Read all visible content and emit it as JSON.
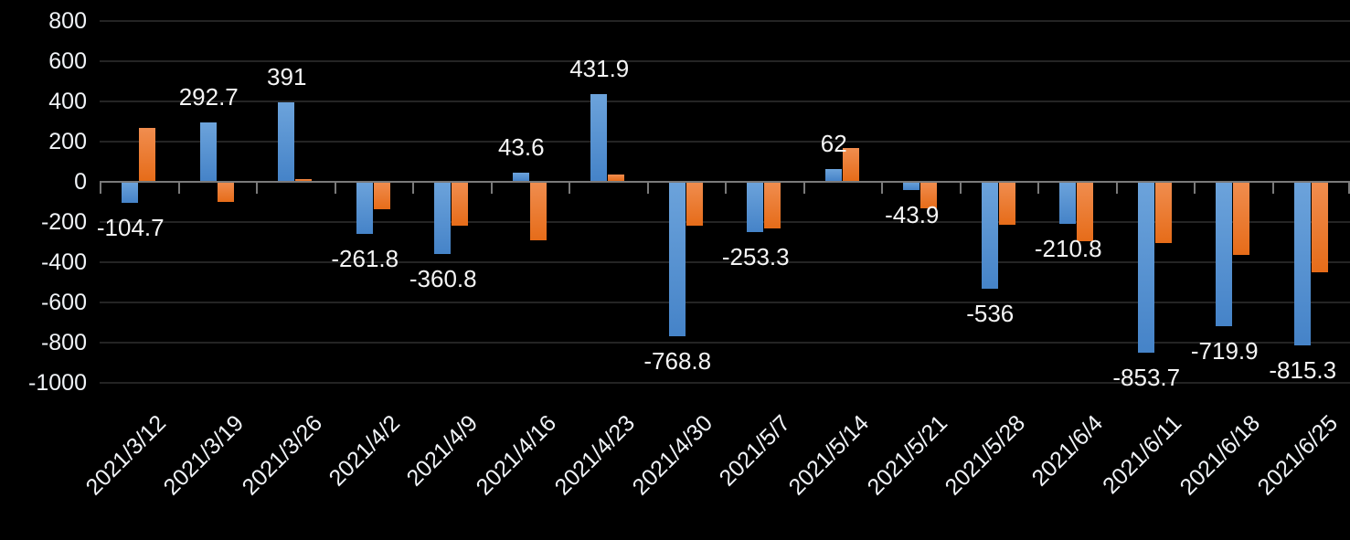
{
  "chart_data": {
    "type": "bar",
    "title": "",
    "legend": "none",
    "grid": "horizontal",
    "background_color": "#000000",
    "text_color": "#f0f3f7",
    "gridline_color": "#242424",
    "axis_line_color": "#7a7a7a",
    "categories": [
      "2021/3/12",
      "2021/3/19",
      "2021/3/26",
      "2021/4/2",
      "2021/4/9",
      "2021/4/16",
      "2021/4/23",
      "2021/4/30",
      "2021/5/7",
      "2021/5/14",
      "2021/5/21",
      "2021/5/28",
      "2021/6/4",
      "2021/6/11",
      "2021/6/18",
      "2021/6/25"
    ],
    "series": [
      {
        "name": "blue-series",
        "color": "#5B9BD5",
        "color_top": "#6CA3DB",
        "color_bottom": "#4583C8",
        "values": [
          -104.7,
          292.7,
          391,
          -261.8,
          -360.8,
          43.6,
          431.9,
          -768.8,
          -253.3,
          62,
          -43.9,
          -536,
          -210.8,
          -853.7,
          -719.9,
          -815.3
        ],
        "data_labels": [
          "-104.7",
          "292.7",
          "391",
          "-261.8",
          "-360.8",
          "43.6",
          "431.9",
          "-768.8",
          "-253.3",
          "62",
          "-43.9",
          "-536",
          "-210.8",
          "-853.7",
          "-719.9",
          "-815.3"
        ]
      },
      {
        "name": "orange-series",
        "color": "#ED7D31",
        "color_top": "#F08D4F",
        "color_bottom": "#E66C19",
        "values": [
          267,
          -100,
          10,
          -140,
          -219,
          -294,
          35,
          -220,
          -235,
          166,
          -135,
          -214,
          -298,
          -308,
          -368,
          -450
        ],
        "data_labels": []
      }
    ],
    "y_axis": {
      "min": -1000,
      "max": 800,
      "step": 200,
      "tick_labels": [
        "800",
        "600",
        "400",
        "200",
        "0",
        "-200",
        "-400",
        "-600",
        "-800",
        "-1000"
      ]
    },
    "x_axis": {
      "label_rotation_deg": -45
    }
  }
}
